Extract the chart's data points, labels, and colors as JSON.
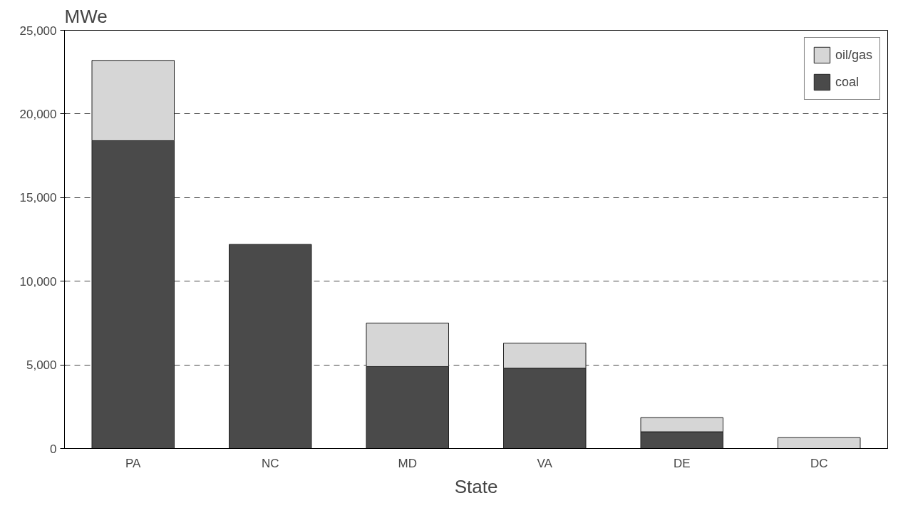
{
  "chart_data": {
    "type": "bar",
    "stacked": true,
    "xlabel": "State",
    "ylabel": "MWe",
    "categories": [
      "PA",
      "NC",
      "MD",
      "VA",
      "DE",
      "DC"
    ],
    "series": [
      {
        "name": "coal",
        "color": "#4a4a4a",
        "values": [
          18400,
          12200,
          4900,
          4800,
          1000,
          0
        ]
      },
      {
        "name": "oil/gas",
        "color": "#d6d6d6",
        "values": [
          4800,
          0,
          2600,
          1500,
          850,
          650
        ]
      }
    ],
    "ylim": [
      0,
      25000
    ],
    "yticks": [
      0,
      {
        "value": 5000,
        "label": "5,000"
      },
      {
        "value": 10000,
        "label": "10,000"
      },
      {
        "value": 15000,
        "label": "15,000"
      },
      {
        "value": 20000,
        "label": "20,000"
      },
      {
        "value": 25000,
        "label": "25,000"
      }
    ],
    "grid": "y",
    "legend": "top right",
    "line_style": "dashed"
  }
}
